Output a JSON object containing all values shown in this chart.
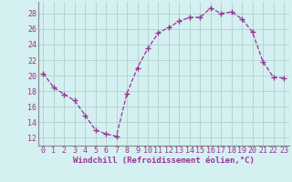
{
  "x": [
    0,
    1,
    2,
    3,
    4,
    5,
    6,
    7,
    8,
    9,
    10,
    11,
    12,
    13,
    14,
    15,
    16,
    17,
    18,
    19,
    20,
    21,
    22,
    23
  ],
  "y": [
    20.3,
    18.5,
    17.6,
    16.8,
    14.9,
    13.0,
    12.5,
    12.2,
    17.7,
    21.0,
    23.5,
    25.5,
    26.2,
    27.0,
    27.5,
    27.5,
    28.7,
    28.0,
    28.2,
    27.3,
    25.6,
    21.8,
    19.8,
    19.7
  ],
  "line_color": "#993399",
  "marker": "+",
  "markersize": 4,
  "background_color": "#d4f0f0",
  "grid_color": "#b0d0d0",
  "xlabel": "Windchill (Refroidissement éolien,°C)",
  "xlabel_color": "#993399",
  "tick_color": "#993399",
  "label_color": "#993399",
  "ylim": [
    11,
    29.5
  ],
  "xlim": [
    -0.5,
    23.5
  ],
  "yticks": [
    12,
    14,
    16,
    18,
    20,
    22,
    24,
    26,
    28
  ],
  "xticks": [
    0,
    1,
    2,
    3,
    4,
    5,
    6,
    7,
    8,
    9,
    10,
    11,
    12,
    13,
    14,
    15,
    16,
    17,
    18,
    19,
    20,
    21,
    22,
    23
  ],
  "tick_fontsize": 6,
  "xlabel_fontsize": 6.5
}
